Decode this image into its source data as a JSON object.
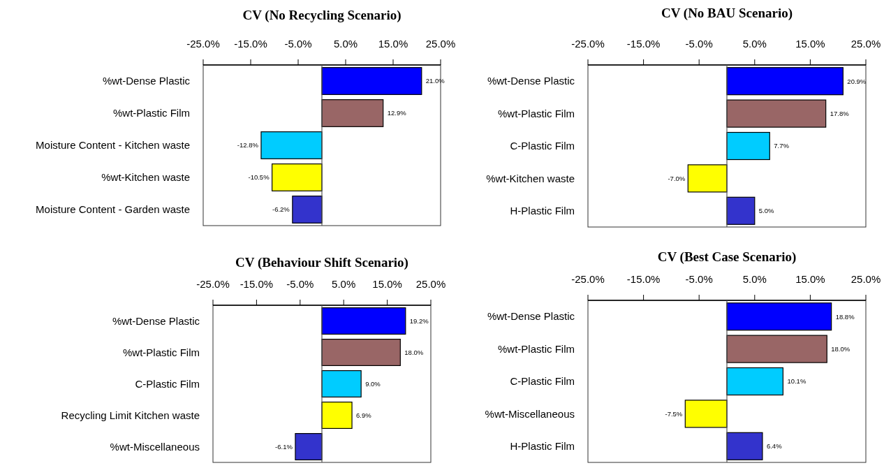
{
  "chart_data": [
    {
      "type": "bar",
      "orientation": "horizontal",
      "title": "CV (No Recycling Scenario)",
      "categories": [
        "%wt-Dense Plastic",
        "%wt-Plastic Film",
        "Moisture Content - Kitchen waste",
        "%wt-Kitchen waste",
        "Moisture Content - Garden waste"
      ],
      "values": [
        21.0,
        12.9,
        -12.8,
        -10.5,
        -6.2
      ],
      "value_labels": [
        "21.0%",
        "12.9%",
        "-12.8%",
        "-10.5%",
        "-6.2%"
      ],
      "colors": [
        "#0000ff",
        "#996666",
        "#00ccff",
        "#ffff00",
        "#3333cc"
      ],
      "xlim": [
        -25,
        25
      ],
      "xticks": [
        {
          "value": -25,
          "label": "-25.0%"
        },
        {
          "value": -15,
          "label": "-15.0%"
        },
        {
          "value": -5,
          "label": "-5.0%"
        },
        {
          "value": 5,
          "label": "5.0%"
        },
        {
          "value": 15,
          "label": "15.0%"
        },
        {
          "value": 25,
          "label": "25.0%"
        }
      ],
      "grid": false
    },
    {
      "type": "bar",
      "orientation": "horizontal",
      "title": "CV (No BAU Scenario)",
      "categories": [
        "%wt-Dense Plastic",
        "%wt-Plastic Film",
        "C-Plastic Film",
        "%wt-Kitchen waste",
        "H-Plastic Film"
      ],
      "values": [
        20.9,
        17.8,
        7.7,
        -7.0,
        5.0
      ],
      "value_labels": [
        "20.9%",
        "17.8%",
        "7.7%",
        "-7.0%",
        "5.0%"
      ],
      "colors": [
        "#0000ff",
        "#996666",
        "#00ccff",
        "#ffff00",
        "#3333cc"
      ],
      "xlim": [
        -25,
        25
      ],
      "xticks": [
        {
          "value": -25,
          "label": "-25.0%"
        },
        {
          "value": -15,
          "label": "-15.0%"
        },
        {
          "value": -5,
          "label": "-5.0%"
        },
        {
          "value": 5,
          "label": "5.0%"
        },
        {
          "value": 15,
          "label": "15.0%"
        },
        {
          "value": 25,
          "label": "25.0%"
        }
      ],
      "grid": false
    },
    {
      "type": "bar",
      "orientation": "horizontal",
      "title": "CV (Behaviour Shift  Scenario)",
      "categories": [
        "%wt-Dense Plastic",
        "%wt-Plastic Film",
        "C-Plastic Film",
        "Recycling Limit Kitchen waste",
        "%wt-Miscellaneous"
      ],
      "values": [
        19.2,
        18.0,
        9.0,
        6.9,
        -6.1
      ],
      "value_labels": [
        "19.2%",
        "18.0%",
        "9.0%",
        "6.9%",
        "-6.1%"
      ],
      "colors": [
        "#0000ff",
        "#996666",
        "#00ccff",
        "#ffff00",
        "#3333cc"
      ],
      "xlim": [
        -25,
        25
      ],
      "xticks": [
        {
          "value": -25,
          "label": "-25.0%"
        },
        {
          "value": -15,
          "label": "-15.0%"
        },
        {
          "value": -5,
          "label": "-5.0%"
        },
        {
          "value": 5,
          "label": "5.0%"
        },
        {
          "value": 15,
          "label": "15.0%"
        },
        {
          "value": 25,
          "label": "25.0%"
        }
      ],
      "grid": false
    },
    {
      "type": "bar",
      "orientation": "horizontal",
      "title": "CV (Best Case Scenario)",
      "categories": [
        "%wt-Dense Plastic",
        "%wt-Plastic Film",
        "C-Plastic Film",
        "%wt-Miscellaneous",
        "H-Plastic Film"
      ],
      "values": [
        18.8,
        18.0,
        10.1,
        -7.5,
        6.4
      ],
      "value_labels": [
        "18.8%",
        "18.0%",
        "10.1%",
        "-7.5%",
        "6.4%"
      ],
      "colors": [
        "#0000ff",
        "#996666",
        "#00ccff",
        "#ffff00",
        "#3333cc"
      ],
      "xlim": [
        -25,
        25
      ],
      "xticks": [
        {
          "value": -25,
          "label": "-25.0%"
        },
        {
          "value": -15,
          "label": "-15.0%"
        },
        {
          "value": -5,
          "label": "-5.0%"
        },
        {
          "value": 5,
          "label": "5.0%"
        },
        {
          "value": 15,
          "label": "15.0%"
        },
        {
          "value": 25,
          "label": "25.0%"
        }
      ],
      "grid": false
    }
  ]
}
